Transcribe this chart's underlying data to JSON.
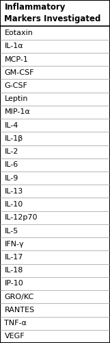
{
  "header": "Inflammatory\nMarkers Investigated",
  "rows": [
    "Eotaxin",
    "IL-1α",
    "MCP-1",
    "GM-CSF",
    "G-CSF",
    "Leptin",
    "MIP-1α",
    "IL-4",
    "IL-1β",
    "IL-2",
    "IL-6",
    "IL-9",
    "IL-13",
    "IL-10",
    "IL-12p70",
    "IL-5",
    "IFN-γ",
    "IL-17",
    "IL-18",
    "IP-10",
    "GRO/KC",
    "RANTES",
    "TNF-α",
    "VEGF"
  ],
  "bg_color": "#ffffff",
  "border_color": "#000000",
  "text_color": "#000000",
  "header_fontsize": 8.5,
  "row_fontsize": 8.0,
  "grid_color": "#999999",
  "fig_width": 1.61,
  "fig_height": 5.0,
  "dpi": 100
}
